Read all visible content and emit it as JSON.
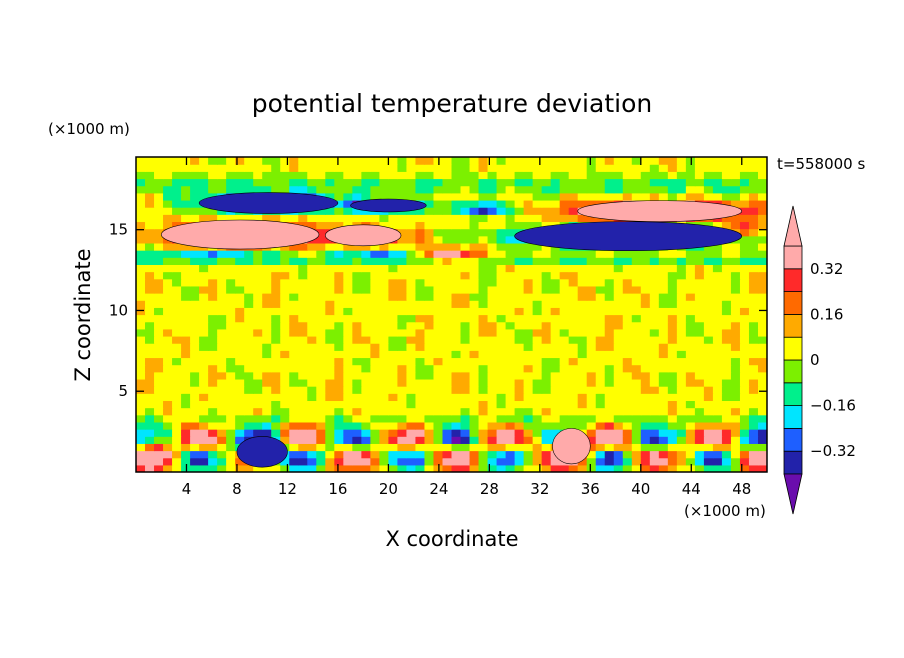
{
  "chart_data": {
    "type": "heatmap",
    "title": "potential temperature deviation",
    "xlabel": "X coordinate",
    "ylabel": "Z coordinate",
    "x_unit": "(×1000 m)",
    "y_unit": "(×1000 m)",
    "time_label": "t=558000 s",
    "xlim": [
      0,
      50
    ],
    "ylim": [
      0,
      19.5
    ],
    "x_ticks": [
      4,
      8,
      12,
      16,
      20,
      24,
      28,
      32,
      36,
      40,
      44,
      48
    ],
    "y_ticks": [
      5,
      10,
      15
    ],
    "colorbar": {
      "levels": [
        -0.4,
        -0.32,
        -0.24,
        -0.16,
        -0.08,
        0,
        0.08,
        0.16,
        0.24,
        0.32,
        0.4
      ],
      "labels": [
        "0.32",
        "0.16",
        "0",
        "−0.16",
        "−0.32"
      ],
      "label_values": [
        0.32,
        0.16,
        0,
        -0.16,
        -0.32
      ],
      "colors": [
        "#6a0dad",
        "#2222aa",
        "#1e5fff",
        "#00e5ff",
        "#00f08c",
        "#7cf000",
        "#ffff00",
        "#ffaa00",
        "#ff6a00",
        "#ff2a2a",
        "#ffaaaa"
      ]
    },
    "features": [
      {
        "name": "warm-layer-west",
        "level": 0.4,
        "x": [
          2,
          14.5
        ],
        "z": [
          13.8,
          15.6
        ]
      },
      {
        "name": "warm-layer-center",
        "level": 0.4,
        "x": [
          15,
          21
        ],
        "z": [
          14.0,
          15.3
        ]
      },
      {
        "name": "warm-layer-east",
        "level": 0.4,
        "x": [
          35,
          48
        ],
        "z": [
          15.5,
          16.8
        ]
      },
      {
        "name": "cold-layer-upper-west",
        "level": -0.4,
        "x": [
          5,
          16
        ],
        "z": [
          16.0,
          17.3
        ]
      },
      {
        "name": "cold-layer-upper-center",
        "level": -0.4,
        "x": [
          17,
          23
        ],
        "z": [
          16.1,
          16.9
        ]
      },
      {
        "name": "cold-layer-east",
        "level": -0.4,
        "x": [
          30,
          48
        ],
        "z": [
          13.7,
          15.5
        ]
      },
      {
        "name": "surface-cold-cell",
        "level": -0.4,
        "x": [
          8,
          12
        ],
        "z": [
          0.3,
          2.2
        ]
      },
      {
        "name": "surface-warm-cell",
        "level": 0.32,
        "x": [
          33,
          36
        ],
        "z": [
          0.5,
          2.7
        ]
      }
    ]
  }
}
